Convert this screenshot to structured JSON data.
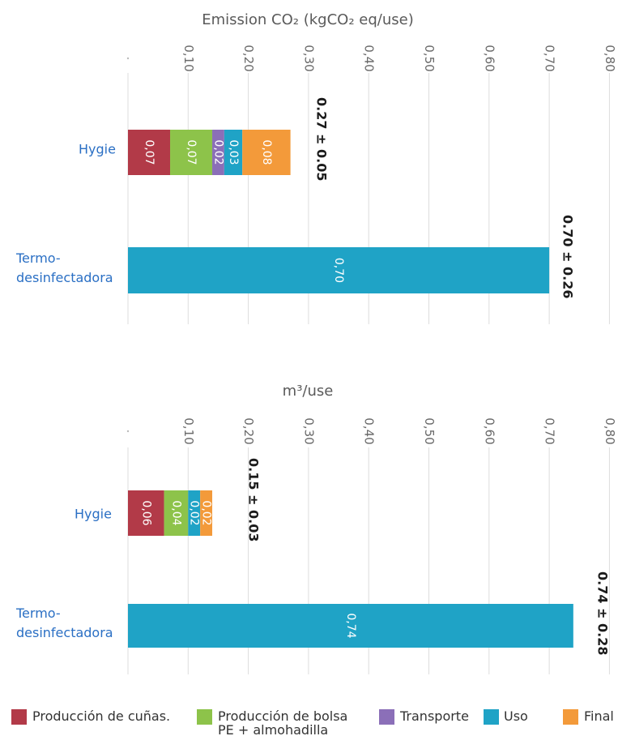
{
  "colors": {
    "Producción de cuñas.": "#b23a48",
    "Producción de bolsa PE + almohadilla": "#8dc34a",
    "Transporte": "#8b6fb8",
    "Uso": "#1fa3c6",
    "Final": "#f39a3a"
  },
  "chart_data": [
    {
      "type": "bar",
      "title": "Emission CO₂ (kgCO₂ eq/use)",
      "xlim": [
        0,
        0.8
      ],
      "tick_labels": [
        "",
        "0,10",
        "0,20",
        "0,30",
        "0,40",
        "0,50",
        "0,60",
        "0,70",
        "0,80"
      ],
      "categories": [
        {
          "name": "Hygie",
          "segments": [
            {
              "series": "Producción de cuñas.",
              "value": 0.07,
              "label": "0,07"
            },
            {
              "series": "Producción de bolsa PE + almohadilla",
              "value": 0.07,
              "label": "0,07"
            },
            {
              "series": "Transporte",
              "value": 0.02,
              "label": "0,02"
            },
            {
              "series": "Uso",
              "value": 0.03,
              "label": "0,03"
            },
            {
              "series": "Final",
              "value": 0.08,
              "label": "0,08"
            }
          ],
          "total_label": "0.27 ± 0.05"
        },
        {
          "name": "Termo-desinfectadora",
          "segments": [
            {
              "series": "Uso",
              "value": 0.7,
              "label": "0,70"
            }
          ],
          "total_label": "0.70 ± 0.26"
        }
      ]
    },
    {
      "type": "bar",
      "title": "m³/use",
      "xlim": [
        0,
        0.8
      ],
      "tick_labels": [
        "",
        "0,10",
        "0,20",
        "0,30",
        "0,40",
        "0,50",
        "0,60",
        "0,70",
        "0,80"
      ],
      "categories": [
        {
          "name": "Hygie",
          "segments": [
            {
              "series": "Producción de cuñas.",
              "value": 0.06,
              "label": "0,06"
            },
            {
              "series": "Producción de bolsa PE + almohadilla",
              "value": 0.04,
              "label": "0,04"
            },
            {
              "series": "Uso",
              "value": 0.02,
              "label": "0,02"
            },
            {
              "series": "Final",
              "value": 0.02,
              "label": "0,02"
            }
          ],
          "total_label": "0.15 ± 0.03"
        },
        {
          "name": "Termo-desinfectadora",
          "segments": [
            {
              "series": "Uso",
              "value": 0.74,
              "label": "0,74"
            }
          ],
          "total_label": "0.74 ± 0.28"
        }
      ]
    }
  ],
  "legend": [
    "Producción de cuñas.",
    "Producción de bolsa PE + almohadilla",
    "Transporte",
    "Uso",
    "Final"
  ]
}
